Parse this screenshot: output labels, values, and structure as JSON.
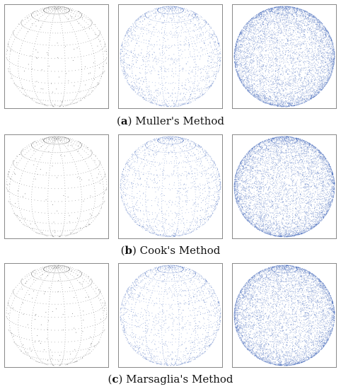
{
  "figure": {
    "rows": [
      {
        "caption": {
          "open": "(",
          "letter": "a",
          "close": ")",
          "method": " Muller's Method"
        },
        "panels": [
          {
            "density": 180,
            "color": "#555555"
          },
          {
            "density": 2200,
            "color": "#3d63b8"
          },
          {
            "density": 16000,
            "color": "#3d63b8"
          }
        ]
      },
      {
        "caption": {
          "open": "(",
          "letter": "b",
          "close": ")",
          "method": " Cook's Method"
        },
        "panels": [
          {
            "density": 180,
            "color": "#555555"
          },
          {
            "density": 2200,
            "color": "#3d63b8"
          },
          {
            "density": 16000,
            "color": "#3d63b8"
          }
        ]
      },
      {
        "caption": {
          "open": "(",
          "letter": "c",
          "close": ")",
          "method": " Marsaglia's Method"
        },
        "panels": [
          {
            "density": 180,
            "color": "#555555"
          },
          {
            "density": 2200,
            "color": "#3d63b8"
          },
          {
            "density": 16000,
            "color": "#3d63b8"
          }
        ]
      }
    ]
  }
}
